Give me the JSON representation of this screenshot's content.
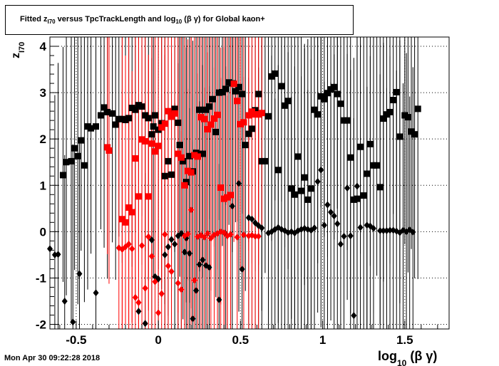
{
  "header": {
    "title_prefix": "Fitted  z",
    "title_sub": "I70",
    "title_mid": "  versus TpcTrackLength and log",
    "title_sub2": "10",
    "title_suffix": " (β γ) for Global kaon+"
  },
  "footer": {
    "timestamp": "Mon Apr 30 09:22:28 2018"
  },
  "axis_titles": {
    "y_main": "z",
    "y_sub": "I70",
    "x_main": "log",
    "x_sub": "10",
    "x_suffix": " (β γ)"
  },
  "colors": {
    "black_series": "#000000",
    "red_series": "#ff0000",
    "grid": "#000000"
  },
  "chart_data": {
    "type": "scatter",
    "title": "Fitted z_I70 versus TpcTrackLength and log10(βγ) for Global kaon+",
    "xlabel": "log10(βγ)",
    "ylabel": "z_I70",
    "xlim": [
      -0.66,
      1.77
    ],
    "ylim": [
      -2.1,
      4.2
    ],
    "x_ticks": [
      -0.5,
      0,
      0.5,
      1,
      1.5
    ],
    "y_ticks": [
      -2,
      -1,
      0,
      1,
      2,
      3,
      4
    ],
    "grid": true,
    "series": [
      {
        "color": "#000000",
        "marker": "square",
        "points": [
          [
            -0.58,
            1.22
          ],
          [
            -0.56,
            1.5
          ],
          [
            -0.53,
            1.52
          ],
          [
            -0.51,
            1.8
          ],
          [
            -0.49,
            1.63
          ],
          [
            -0.47,
            1.97
          ],
          [
            -0.45,
            1.43
          ],
          [
            -0.43,
            2.27
          ],
          [
            -0.41,
            2.23
          ],
          [
            -0.38,
            2.27
          ],
          [
            -0.35,
            2.51
          ],
          [
            -0.33,
            2.68
          ],
          [
            -0.31,
            2.58
          ],
          [
            -0.28,
            2.55
          ],
          [
            -0.26,
            2.31
          ],
          [
            -0.24,
            2.43
          ],
          [
            -0.22,
            2.43
          ],
          [
            -0.2,
            2.41
          ],
          [
            -0.18,
            2.45
          ],
          [
            -0.16,
            2.67
          ],
          [
            -0.14,
            2.63
          ],
          [
            -0.12,
            2.73
          ],
          [
            -0.1,
            2.7
          ],
          [
            -0.08,
            2.51
          ],
          [
            -0.06,
            2.45
          ],
          [
            -0.04,
            2.1
          ],
          [
            -0.03,
            2.27
          ],
          [
            -0.02,
            2.51
          ],
          [
            0.0,
            2.2
          ],
          [
            0.02,
            2.34
          ],
          [
            0.04,
            1.2
          ],
          [
            0.06,
            1.52
          ],
          [
            0.08,
            1.23
          ],
          [
            0.1,
            2.65
          ],
          [
            0.12,
            2.35
          ],
          [
            0.13,
            1.87
          ],
          [
            0.15,
            1.52
          ],
          [
            0.17,
            1.07
          ],
          [
            0.19,
            1.63
          ],
          [
            0.21,
            1.3
          ],
          [
            0.23,
            1.7
          ],
          [
            0.25,
            2.63
          ],
          [
            0.27,
            1.68
          ],
          [
            0.29,
            2.63
          ],
          [
            0.31,
            2.7
          ],
          [
            0.33,
            2.86
          ],
          [
            0.35,
            2.15
          ],
          [
            0.37,
            3.0
          ],
          [
            0.39,
            3.01
          ],
          [
            0.41,
            3.08
          ],
          [
            0.43,
            3.22
          ],
          [
            0.45,
            3.2
          ],
          [
            0.47,
            3.03
          ],
          [
            0.49,
            3.12
          ],
          [
            0.51,
            2.97
          ],
          [
            0.53,
            1.87
          ],
          [
            0.55,
            2.11
          ],
          [
            0.57,
            2.22
          ],
          [
            0.59,
            2.62
          ],
          [
            0.61,
            2.97
          ],
          [
            0.63,
            1.52
          ],
          [
            0.65,
            1.52
          ],
          [
            0.67,
            2.49
          ],
          [
            0.69,
            3.35
          ],
          [
            0.71,
            3.41
          ],
          [
            0.73,
            1.33
          ],
          [
            0.75,
            3.14
          ],
          [
            0.77,
            2.72
          ],
          [
            0.79,
            2.82
          ],
          [
            0.81,
            0.93
          ],
          [
            0.83,
            0.8
          ],
          [
            0.85,
            1.62
          ],
          [
            0.87,
            0.88
          ],
          [
            0.89,
            1.17
          ],
          [
            0.91,
            0.69
          ],
          [
            0.93,
            0.93
          ],
          [
            0.95,
            2.63
          ],
          [
            0.97,
            2.53
          ],
          [
            0.99,
            2.92
          ],
          [
            1.01,
            2.86
          ],
          [
            1.03,
            2.99
          ],
          [
            1.05,
            3.07
          ],
          [
            1.07,
            3.12
          ],
          [
            1.09,
            2.97
          ],
          [
            1.11,
            2.76
          ],
          [
            1.13,
            2.4
          ],
          [
            1.15,
            2.4
          ],
          [
            1.17,
            1.6
          ],
          [
            1.19,
            0.69
          ],
          [
            1.21,
            0.71
          ],
          [
            1.23,
            1.83
          ],
          [
            1.25,
            0.78
          ],
          [
            1.27,
            1.25
          ],
          [
            1.29,
            1.89
          ],
          [
            1.31,
            1.43
          ],
          [
            1.33,
            1.43
          ],
          [
            1.35,
            0.96
          ],
          [
            1.37,
            2.44
          ],
          [
            1.39,
            2.53
          ],
          [
            1.41,
            2.58
          ],
          [
            1.43,
            2.84
          ],
          [
            1.45,
            3.01
          ],
          [
            1.47,
            2.05
          ],
          [
            1.5,
            2.51
          ],
          [
            1.52,
            2.47
          ],
          [
            1.54,
            2.16
          ],
          [
            1.56,
            2.1
          ],
          [
            1.58,
            2.65
          ]
        ]
      },
      {
        "color": "#000000",
        "marker": "diamond",
        "points": [
          [
            -0.66,
            -0.37
          ],
          [
            -0.63,
            -0.5
          ],
          [
            -0.61,
            -0.49
          ],
          [
            -0.57,
            -1.5
          ],
          [
            -0.52,
            -1.95
          ],
          [
            -0.48,
            -0.91
          ],
          [
            -0.38,
            -1.32
          ],
          [
            -0.12,
            -1.72
          ],
          [
            -0.08,
            -1.98
          ],
          [
            -0.04,
            -0.18
          ],
          [
            -0.02,
            -0.97
          ],
          [
            0.0,
            -1.02
          ],
          [
            0.04,
            -0.5
          ],
          [
            0.06,
            -0.33
          ],
          [
            0.08,
            -0.17
          ],
          [
            0.1,
            -0.27
          ],
          [
            0.12,
            -0.09
          ],
          [
            0.14,
            -0.04
          ],
          [
            0.16,
            -0.44
          ],
          [
            0.17,
            -0.14
          ],
          [
            0.19,
            -0.47
          ],
          [
            0.21,
            -1.88
          ],
          [
            0.23,
            -1.27
          ],
          [
            0.25,
            -0.71
          ],
          [
            0.27,
            -0.61
          ],
          [
            0.29,
            -0.73
          ],
          [
            0.31,
            -0.77
          ],
          [
            0.37,
            -1.47
          ],
          [
            0.41,
            -0.05
          ],
          [
            0.45,
            0.55
          ],
          [
            0.49,
            1.04
          ],
          [
            0.51,
            -0.81
          ],
          [
            0.55,
            0.3
          ],
          [
            0.57,
            0.27
          ],
          [
            0.59,
            0.19
          ],
          [
            0.61,
            0.13
          ],
          [
            0.63,
            0.08
          ],
          [
            0.67,
            -0.03
          ],
          [
            0.69,
            0.0
          ],
          [
            0.71,
            0.05
          ],
          [
            0.73,
            0.09
          ],
          [
            0.75,
            0.05
          ],
          [
            0.77,
            0.02
          ],
          [
            0.79,
            -0.02
          ],
          [
            0.81,
            0.0
          ],
          [
            0.83,
            -0.03
          ],
          [
            0.85,
            0.02
          ],
          [
            0.87,
            0.05
          ],
          [
            0.89,
            0.07
          ],
          [
            0.91,
            0.05
          ],
          [
            0.93,
            0.03
          ],
          [
            0.95,
            0.08
          ],
          [
            0.97,
            1.08
          ],
          [
            0.99,
            1.33
          ],
          [
            1.01,
            0.14
          ],
          [
            1.03,
            0.58
          ],
          [
            1.05,
            0.42
          ],
          [
            1.07,
            0.34
          ],
          [
            1.09,
            0.17
          ],
          [
            1.11,
            -0.27
          ],
          [
            1.13,
            -0.1
          ],
          [
            1.15,
            0.94
          ],
          [
            1.17,
            -0.09
          ],
          [
            1.19,
            -1.81
          ],
          [
            1.21,
            0.98
          ],
          [
            1.23,
            0.09
          ],
          [
            1.27,
            0.14
          ],
          [
            1.29,
            0.12
          ],
          [
            1.31,
            0.07
          ],
          [
            1.35,
            0.02
          ],
          [
            1.37,
            0.02
          ],
          [
            1.39,
            0.02
          ],
          [
            1.41,
            0.03
          ],
          [
            1.43,
            0.03
          ],
          [
            1.45,
            0.01
          ],
          [
            1.47,
            -0.02
          ],
          [
            1.49,
            0.03
          ],
          [
            1.51,
            0.0
          ],
          [
            1.53,
            0.04
          ],
          [
            1.55,
            -0.01
          ]
        ]
      },
      {
        "color": "#ff0000",
        "marker": "square",
        "points": [
          [
            -0.31,
            1.82
          ],
          [
            -0.3,
            1.75
          ],
          [
            -0.22,
            0.27
          ],
          [
            -0.2,
            0.2
          ],
          [
            -0.18,
            0.52
          ],
          [
            -0.16,
            0.42
          ],
          [
            -0.14,
            1.58
          ],
          [
            -0.12,
            0.76
          ],
          [
            -0.1,
            1.99
          ],
          [
            -0.08,
            1.95
          ],
          [
            -0.06,
            0.76
          ],
          [
            -0.04,
            1.9
          ],
          [
            -0.02,
            1.73
          ],
          [
            0.0,
            1.85
          ],
          [
            0.02,
            2.25
          ],
          [
            0.04,
            2.33
          ],
          [
            0.06,
            2.6
          ],
          [
            0.08,
            2.48
          ],
          [
            0.1,
            2.55
          ],
          [
            0.12,
            1.68
          ],
          [
            0.14,
            1.6
          ],
          [
            0.16,
            1.0
          ],
          [
            0.18,
            1.31
          ],
          [
            0.2,
            1.28
          ],
          [
            0.22,
            1.65
          ],
          [
            0.24,
            1.62
          ],
          [
            0.26,
            2.47
          ],
          [
            0.28,
            2.43
          ],
          [
            0.3,
            2.21
          ],
          [
            0.32,
            2.31
          ],
          [
            0.34,
            2.44
          ],
          [
            0.36,
            2.52
          ],
          [
            0.38,
            0.95
          ],
          [
            0.4,
            0.71
          ],
          [
            0.42,
            0.74
          ],
          [
            0.44,
            0.79
          ],
          [
            0.46,
            3.19
          ],
          [
            0.48,
            2.82
          ],
          [
            0.5,
            2.32
          ],
          [
            0.52,
            2.36
          ],
          [
            0.55,
            2.51
          ],
          [
            0.57,
            2.59
          ],
          [
            0.59,
            2.53
          ],
          [
            0.61,
            2.53
          ],
          [
            0.63,
            2.56
          ]
        ]
      },
      {
        "color": "#ff0000",
        "marker": "diamond",
        "points": [
          [
            -0.24,
            -0.35
          ],
          [
            -0.22,
            -0.38
          ],
          [
            -0.2,
            -0.33
          ],
          [
            -0.18,
            -0.27
          ],
          [
            -0.16,
            -0.37
          ],
          [
            -0.14,
            -1.42
          ],
          [
            -0.12,
            -1.53
          ],
          [
            -0.1,
            -0.3
          ],
          [
            -0.08,
            -1.22
          ],
          [
            -0.06,
            -0.11
          ],
          [
            -0.04,
            -0.53
          ],
          [
            -0.02,
            -1.08
          ],
          [
            0.0,
            -1.75
          ],
          [
            0.02,
            -1.34
          ],
          [
            0.04,
            -0.06
          ],
          [
            0.06,
            -0.74
          ],
          [
            0.08,
            -0.86
          ],
          [
            0.12,
            -1.11
          ],
          [
            0.14,
            -1.25
          ],
          [
            0.16,
            -0.09
          ],
          [
            0.18,
            -0.05
          ],
          [
            0.2,
            0.47
          ],
          [
            0.22,
            -1.05
          ],
          [
            0.24,
            -0.11
          ],
          [
            0.26,
            -0.08
          ],
          [
            0.28,
            -0.12
          ],
          [
            0.3,
            -0.04
          ],
          [
            0.32,
            -0.14
          ],
          [
            0.34,
            -0.07
          ],
          [
            0.36,
            -0.04
          ],
          [
            0.38,
            0.0
          ],
          [
            0.4,
            -0.02
          ],
          [
            0.42,
            -0.09
          ],
          [
            0.44,
            -0.06
          ],
          [
            0.48,
            -0.12
          ],
          [
            0.52,
            -0.07
          ],
          [
            0.55,
            -0.09
          ],
          [
            0.57,
            -0.08
          ],
          [
            0.59,
            -0.1
          ],
          [
            0.61,
            -0.1
          ]
        ]
      }
    ]
  }
}
